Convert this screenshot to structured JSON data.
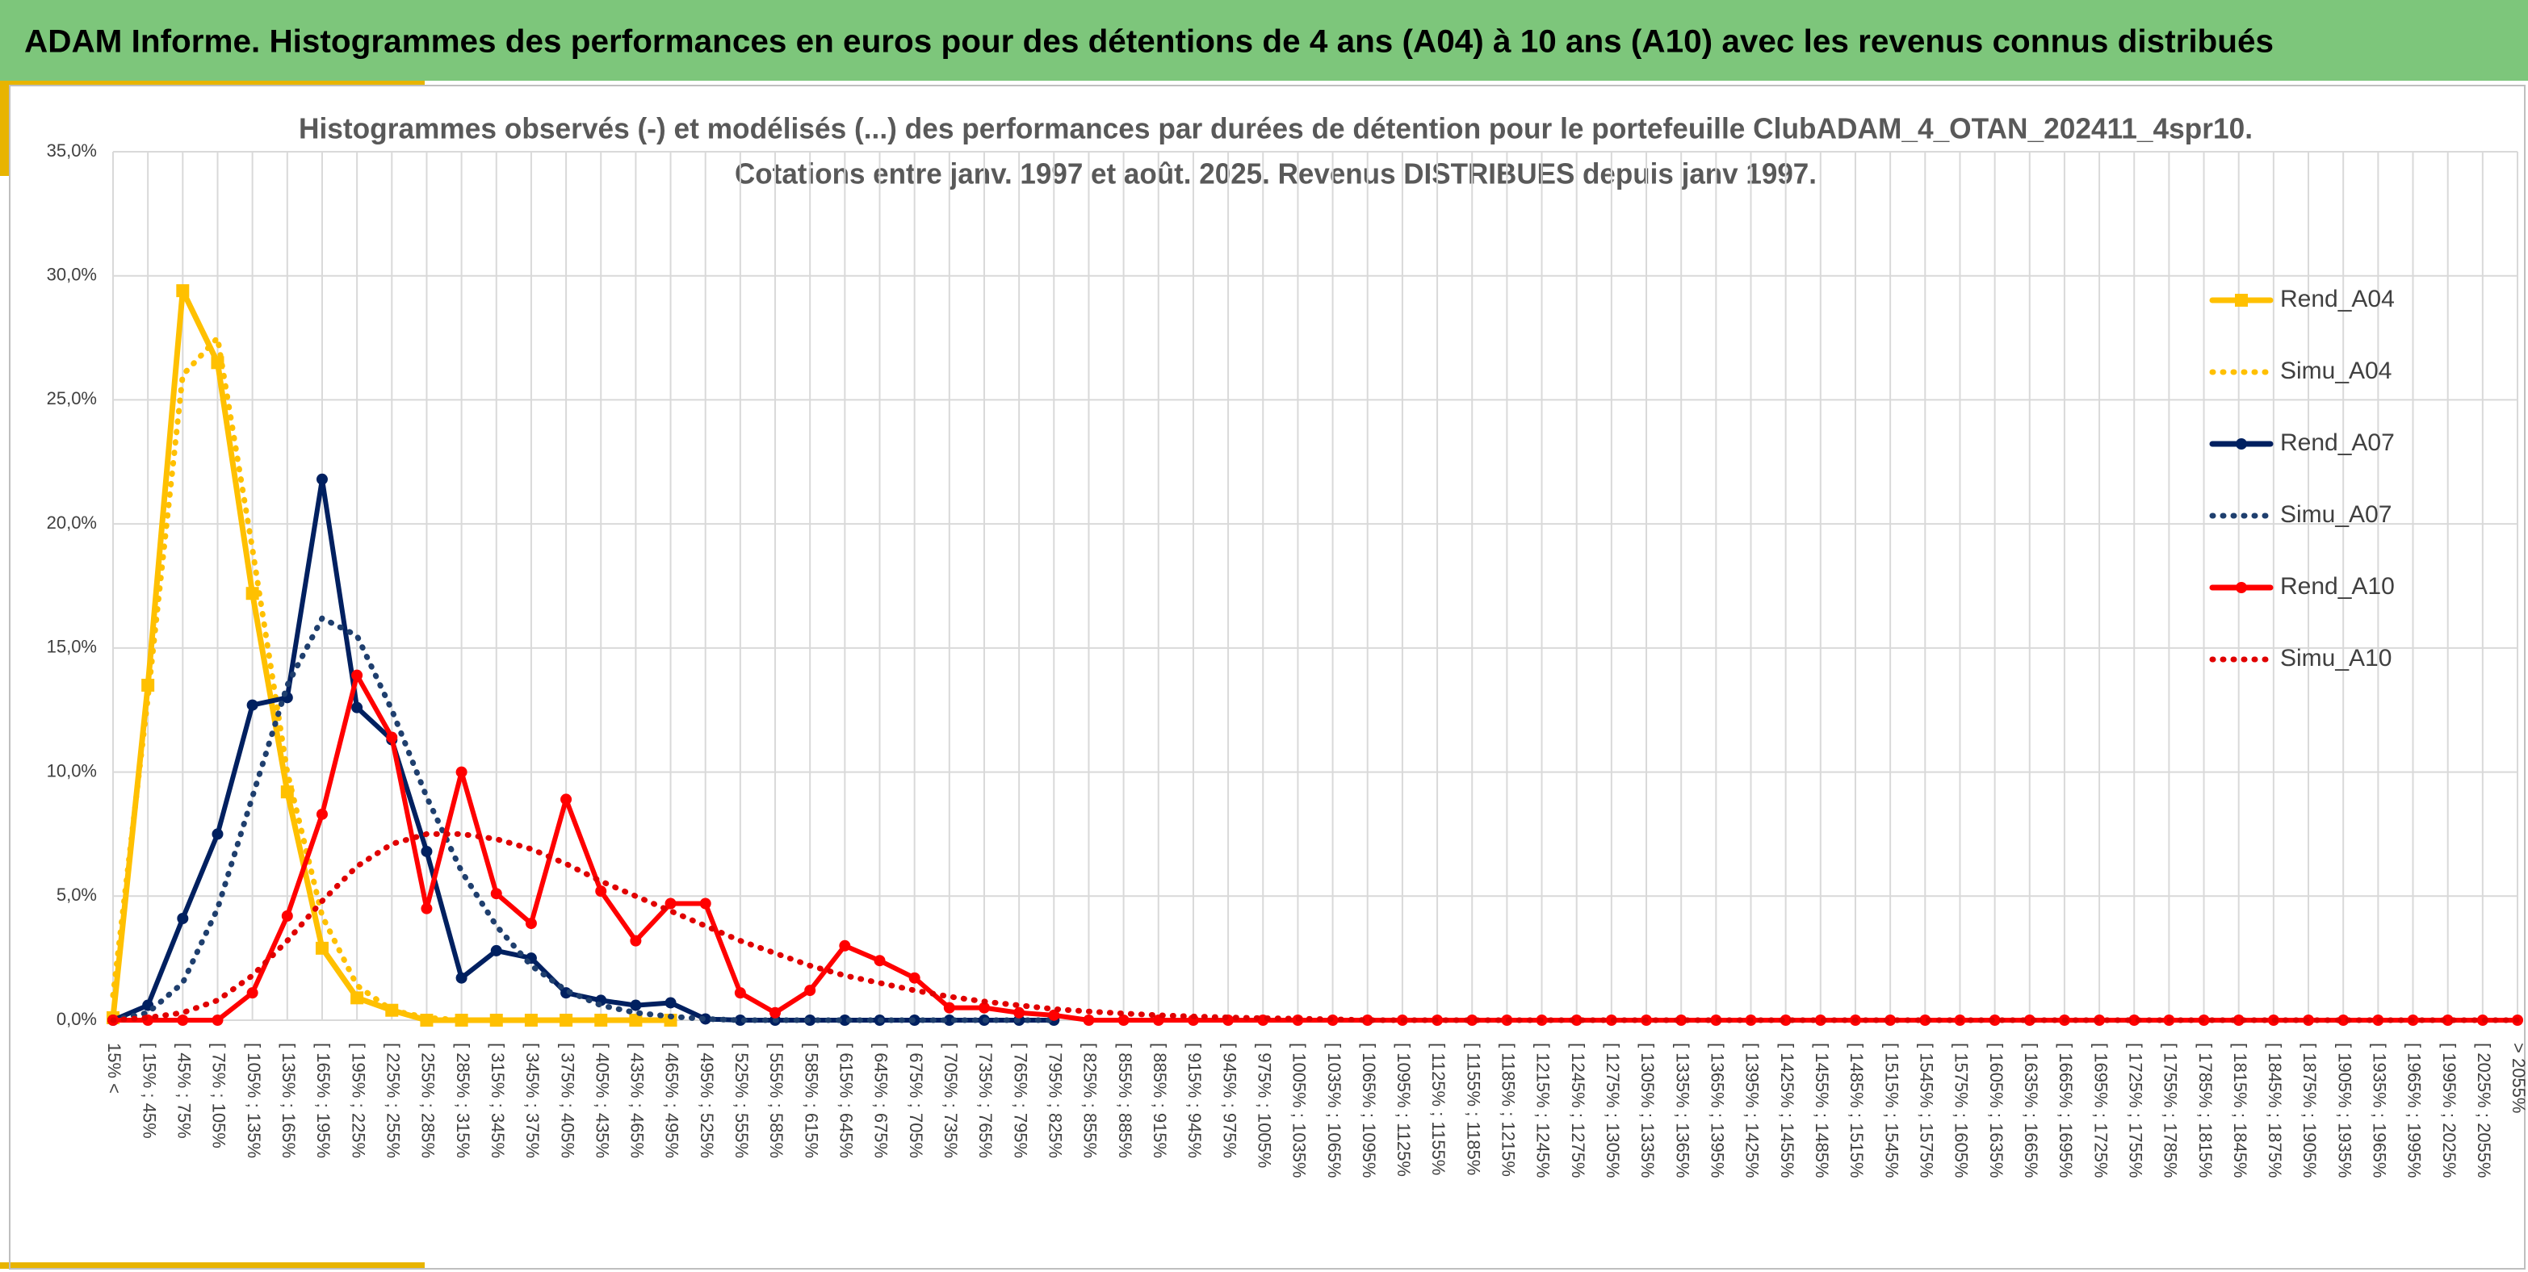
{
  "chart_data": {
    "type": "line",
    "header": "ADAM Informe. Histogrammes des performances en euros pour des détentions de 4 ans (A04) à 10 ans (A10) avec les revenus connus distribués",
    "title": "Histogrammes observés (-) et modélisés (...) des performances par durées de détention pour le portefeuille ClubADAM_4_OTAN_202411_4spr10.",
    "subtitle": "Cotations entre janv. 1997 et août. 2025. Revenus DISTRIBUES depuis janv 1997.",
    "categories": [
      "15% <",
      "[ 15% ; 45%",
      "[ 45% ; 75%",
      "[ 75% ; 105%",
      "[ 105% ; 135%",
      "[ 135% ; 165%",
      "[ 165% ; 195%",
      "[ 195% ; 225%",
      "[ 225% ; 255%",
      "[ 255% ; 285%",
      "[ 285% ; 315%",
      "[ 315% ; 345%",
      "[ 345% ; 375%",
      "[ 375% ; 405%",
      "[ 405% ; 435%",
      "[ 435% ; 465%",
      "[ 465% ; 495%",
      "[ 495% ; 525%",
      "[ 525% ; 555%",
      "[ 555% ; 585%",
      "[ 585% ; 615%",
      "[ 615% ; 645%",
      "[ 645% ; 675%",
      "[ 675% ; 705%",
      "[ 705% ; 735%",
      "[ 735% ; 765%",
      "[ 765% ; 795%",
      "[ 795% ; 825%",
      "[ 825% ; 855%",
      "[ 855% ; 885%",
      "[ 885% ; 915%",
      "[ 915% ; 945%",
      "[ 945% ; 975%",
      "[ 975% ; 1005%",
      "[ 1005% ; 1035%",
      "[ 1035% ; 1065%",
      "[ 1065% ; 1095%",
      "[ 1095% ; 1125%",
      "[ 1125% ; 1155%",
      "[ 1155% ; 1185%",
      "[ 1185% ; 1215%",
      "[ 1215% ; 1245%",
      "[ 1245% ; 1275%",
      "[ 1275% ; 1305%",
      "[ 1305% ; 1335%",
      "[ 1335% ; 1365%",
      "[ 1365% ; 1395%",
      "[ 1395% ; 1425%",
      "[ 1425% ; 1455%",
      "[ 1455% ; 1485%",
      "[ 1485% ; 1515%",
      "[ 1515% ; 1545%",
      "[ 1545% ; 1575%",
      "[ 1575% ; 1605%",
      "[ 1605% ; 1635%",
      "[ 1635% ; 1665%",
      "[ 1665% ; 1695%",
      "[ 1695% ; 1725%",
      "[ 1725% ; 1755%",
      "[ 1755% ; 1785%",
      "[ 1785% ; 1815%",
      "[ 1815% ; 1845%",
      "[ 1845% ; 1875%",
      "[ 1875% ; 1905%",
      "[ 1905% ; 1935%",
      "[ 1935% ; 1965%",
      "[ 1965% ; 1995%",
      "[ 1995% ; 2025%",
      "[ 2025% ; 2055%",
      "> 2055%"
    ],
    "series": [
      {
        "name": "Rend_A04",
        "color": "#ffc000",
        "line_style": "solid",
        "marker": "square",
        "values": [
          0.1,
          13.5,
          29.4,
          26.5,
          17.2,
          9.2,
          2.9,
          0.9,
          0.4,
          0,
          0,
          0,
          0,
          0,
          0,
          0,
          0,
          null,
          null,
          null,
          null,
          null,
          null,
          null,
          null,
          null,
          null,
          null,
          null,
          null,
          null,
          null,
          null,
          null,
          null,
          null,
          null,
          null,
          null,
          null,
          null,
          null,
          null,
          null,
          null,
          null,
          null,
          null,
          null,
          null,
          null,
          null,
          null,
          null,
          null,
          null,
          null,
          null,
          null,
          null,
          null,
          null,
          null,
          null,
          null,
          null,
          null,
          null,
          null,
          null
        ]
      },
      {
        "name": "Simu_A04",
        "color": "#ffc000",
        "line_style": "dotted",
        "marker": null,
        "values": [
          1.0,
          13,
          26,
          27.5,
          19,
          10,
          4.2,
          1.4,
          0.4,
          0.1,
          0,
          0,
          0,
          0,
          0,
          0,
          0,
          null,
          null,
          null,
          null,
          null,
          null,
          null,
          null,
          null,
          null,
          null,
          null,
          null,
          null,
          null,
          null,
          null,
          null,
          null,
          null,
          null,
          null,
          null,
          null,
          null,
          null,
          null,
          null,
          null,
          null,
          null,
          null,
          null,
          null,
          null,
          null,
          null,
          null,
          null,
          null,
          null,
          null,
          null,
          null,
          null,
          null,
          null,
          null,
          null,
          null,
          null,
          null,
          null
        ]
      },
      {
        "name": "Rend_A07",
        "color": "#002060",
        "line_style": "solid",
        "marker": "circle",
        "values": [
          0,
          0.6,
          4.1,
          7.5,
          12.7,
          13.0,
          21.8,
          12.6,
          11.3,
          6.8,
          1.7,
          2.8,
          2.5,
          1.1,
          0.8,
          0.6,
          0.7,
          0.05,
          0,
          0,
          0,
          0,
          0,
          0,
          0,
          0,
          0,
          0,
          null,
          null,
          null,
          null,
          null,
          null,
          null,
          null,
          null,
          null,
          null,
          null,
          null,
          null,
          null,
          null,
          null,
          null,
          null,
          null,
          null,
          null,
          null,
          null,
          null,
          null,
          null,
          null,
          null,
          null,
          null,
          null,
          null,
          null,
          null,
          null,
          null,
          null,
          null,
          null,
          null,
          null
        ]
      },
      {
        "name": "Simu_A07",
        "color": "#1f3f6e",
        "line_style": "dotted",
        "marker": null,
        "values": [
          0,
          0.3,
          1.5,
          4.5,
          9,
          13.5,
          16.2,
          15.5,
          12.5,
          9,
          6,
          3.8,
          2.2,
          1.2,
          0.6,
          0.3,
          0.15,
          0.05,
          0,
          0,
          0,
          0,
          0,
          0,
          0,
          0,
          0,
          0,
          null,
          null,
          null,
          null,
          null,
          null,
          null,
          null,
          null,
          null,
          null,
          null,
          null,
          null,
          null,
          null,
          null,
          null,
          null,
          null,
          null,
          null,
          null,
          null,
          null,
          null,
          null,
          null,
          null,
          null,
          null,
          null,
          null,
          null,
          null,
          null,
          null,
          null,
          null,
          null,
          null,
          null
        ]
      },
      {
        "name": "Rend_A10",
        "color": "#ff0000",
        "line_style": "solid",
        "marker": "circle",
        "values": [
          0,
          0,
          0,
          0,
          1.1,
          4.2,
          8.3,
          13.9,
          11.4,
          4.5,
          10.0,
          5.1,
          3.9,
          8.9,
          5.2,
          3.2,
          4.7,
          4.7,
          1.1,
          0.3,
          1.2,
          3.0,
          2.4,
          1.7,
          0.5,
          0.5,
          0.3,
          0.2,
          0,
          0,
          0,
          0,
          0,
          0,
          0,
          0,
          0,
          0,
          0,
          0,
          0,
          0,
          0,
          0,
          0,
          0,
          0,
          0,
          0,
          0,
          0,
          0,
          0,
          0,
          0,
          0,
          0,
          0,
          0,
          0,
          0,
          0,
          0,
          0,
          0,
          0,
          0,
          0,
          0,
          0
        ]
      },
      {
        "name": "Simu_A10",
        "color": "#e00000",
        "line_style": "dotted",
        "marker": null,
        "values": [
          0,
          0.1,
          0.3,
          0.8,
          1.8,
          3.2,
          4.8,
          6.2,
          7.1,
          7.5,
          7.5,
          7.3,
          6.9,
          6.3,
          5.6,
          5.0,
          4.4,
          3.8,
          3.2,
          2.7,
          2.2,
          1.8,
          1.5,
          1.2,
          0.95,
          0.75,
          0.6,
          0.45,
          0.35,
          0.27,
          0.2,
          0.15,
          0.11,
          0.08,
          0.06,
          0.04,
          0,
          0,
          0,
          0,
          0,
          0,
          0,
          0,
          0,
          0,
          0,
          0,
          0,
          0,
          0,
          0,
          0,
          0,
          0,
          0,
          0,
          0,
          0,
          0,
          0,
          0,
          0,
          0,
          0,
          0,
          0,
          0,
          0,
          0
        ]
      }
    ],
    "ylim": [
      0,
      35
    ],
    "yticks": [
      {
        "value": 0,
        "label": "0,0%"
      },
      {
        "value": 5,
        "label": "5,0%"
      },
      {
        "value": 10,
        "label": "10,0%"
      },
      {
        "value": 15,
        "label": "15,0%"
      },
      {
        "value": 20,
        "label": "20,0%"
      },
      {
        "value": 25,
        "label": "25,0%"
      },
      {
        "value": 30,
        "label": "30,0%"
      },
      {
        "value": 35,
        "label": "35,0%"
      }
    ],
    "grid": true,
    "legend": "right"
  }
}
